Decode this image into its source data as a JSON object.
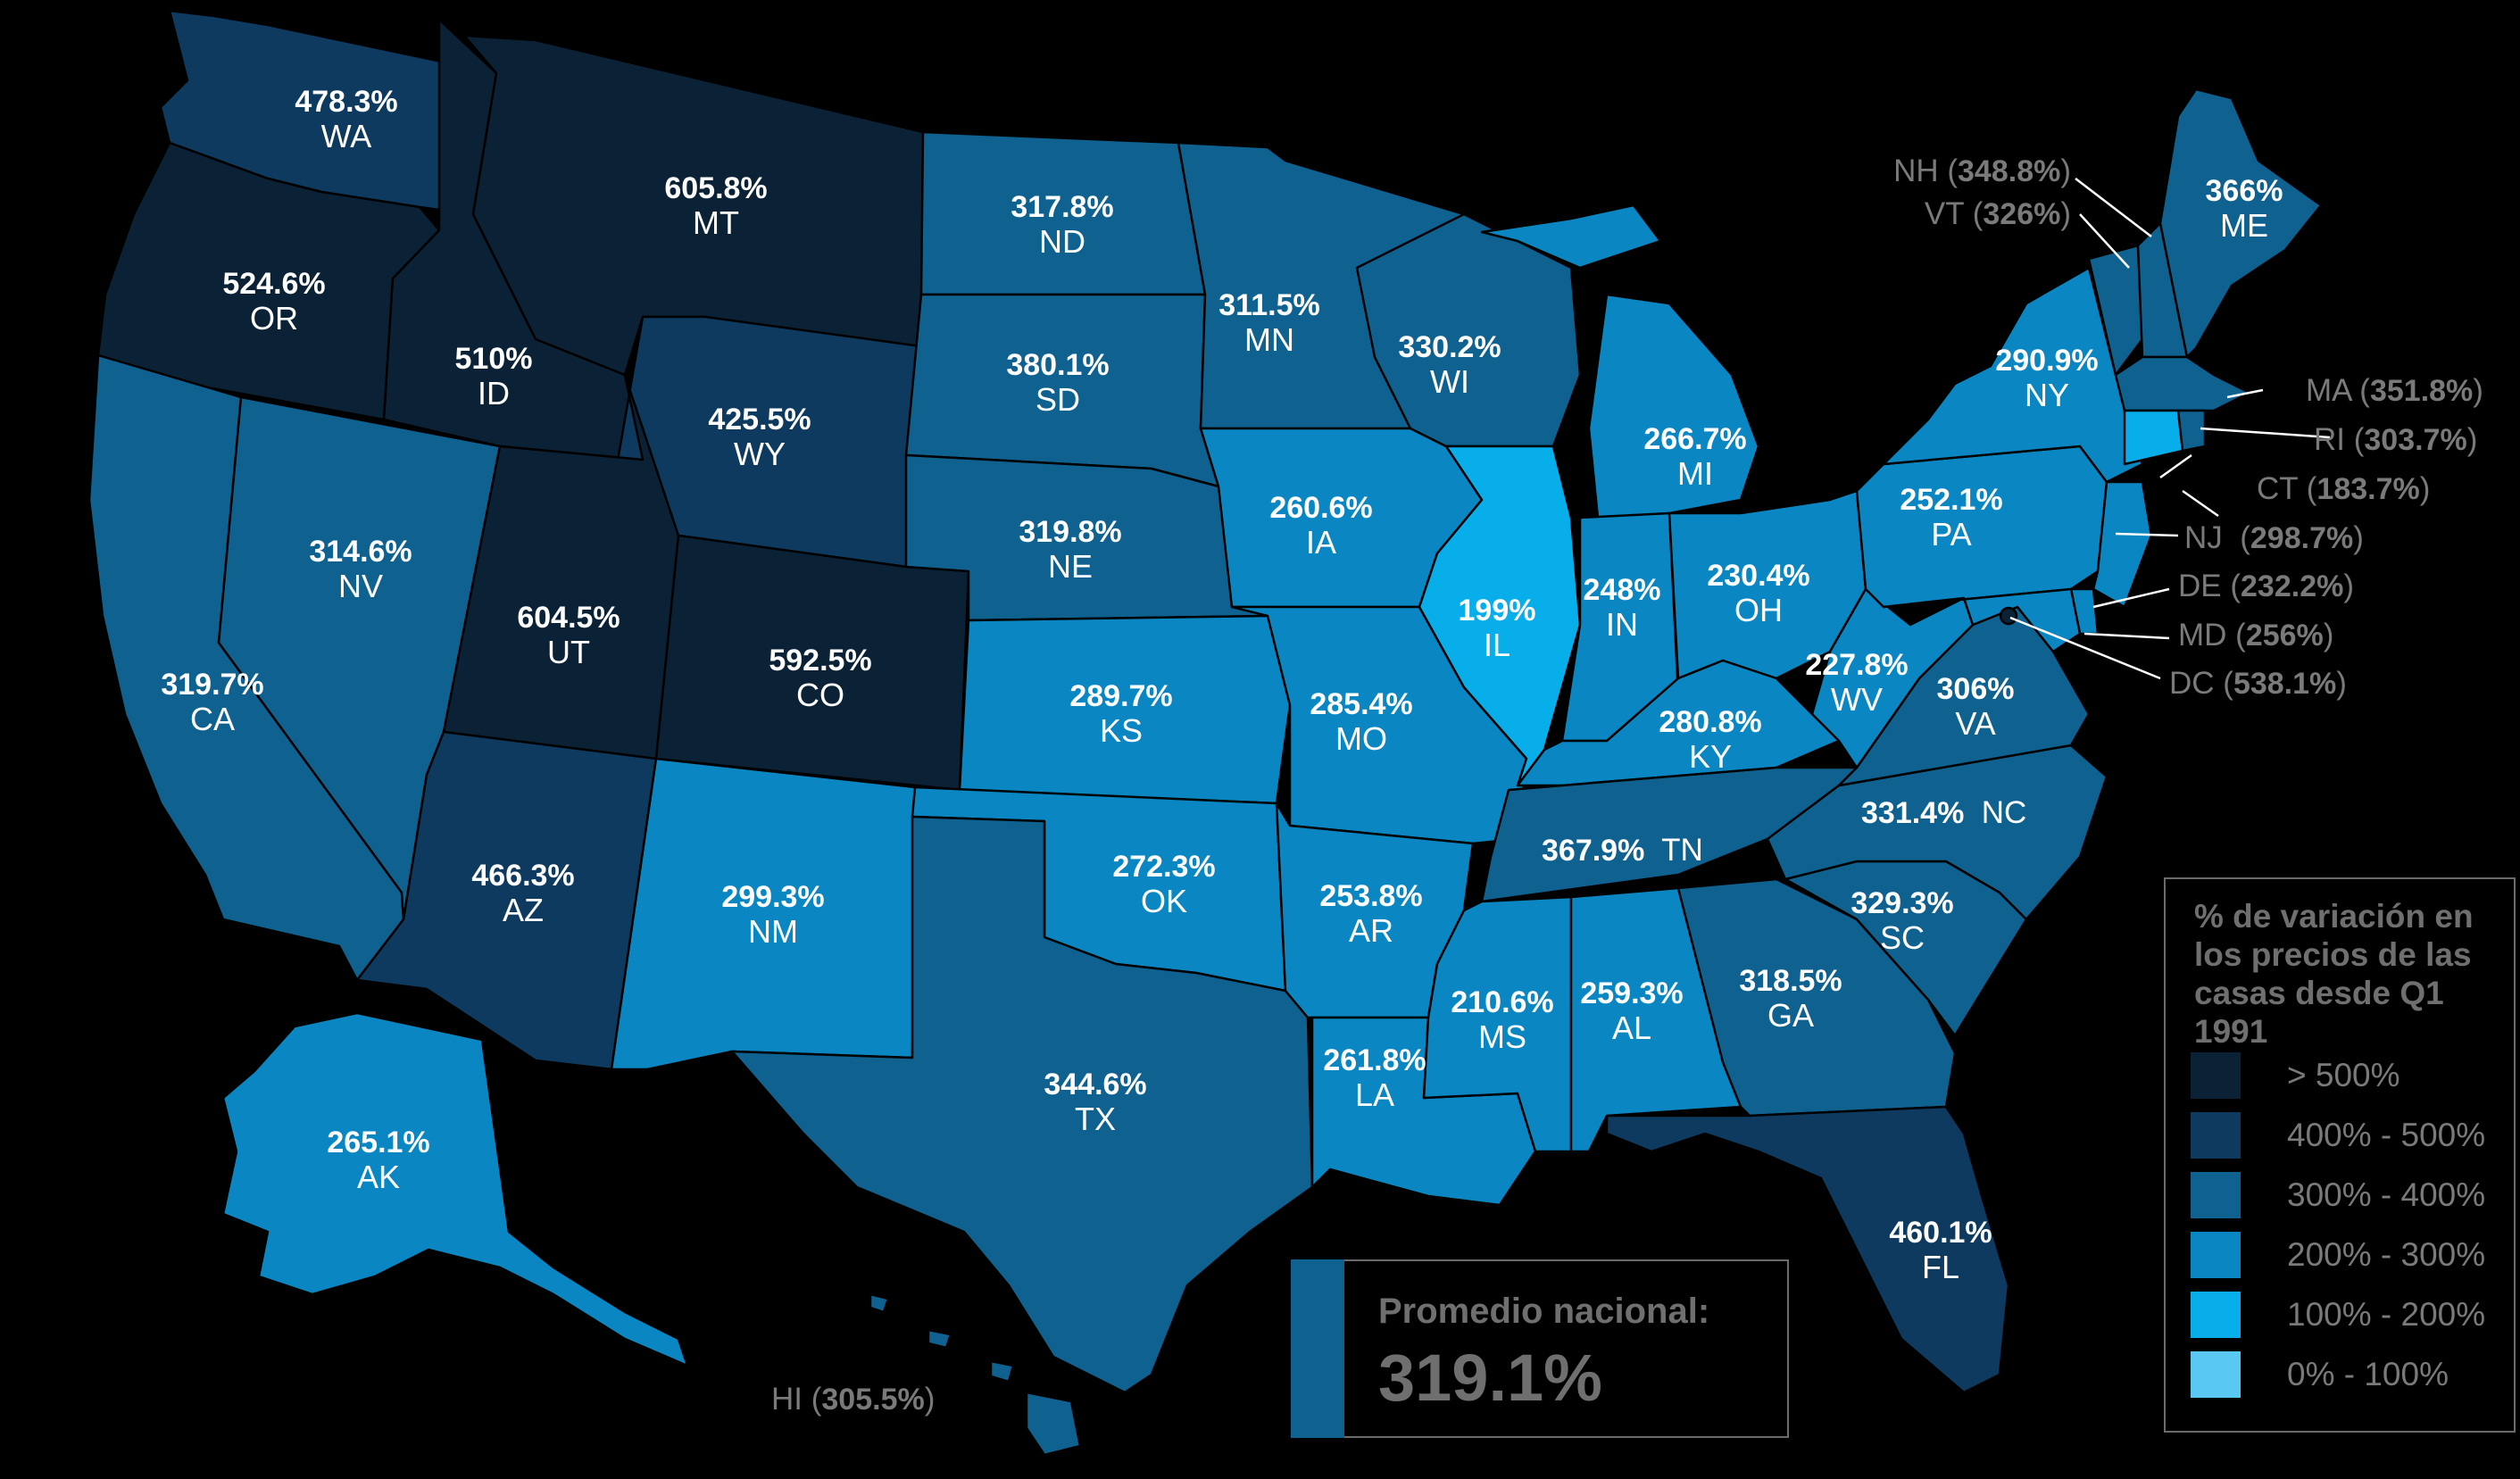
{
  "palette": {
    "b500": "#0b2236",
    "b400": "#0d3a5e",
    "b300": "#0f6190",
    "b200": "#0a87c2",
    "b100": "#08aeea",
    "b0": "#59c9f3"
  },
  "states": [
    {
      "id": "WA",
      "abbr": "WA",
      "pct": "478.3%",
      "bin": "b400"
    },
    {
      "id": "OR",
      "abbr": "OR",
      "pct": "524.6%",
      "bin": "b500"
    },
    {
      "id": "CA",
      "abbr": "CA",
      "pct": "319.7%",
      "bin": "b300"
    },
    {
      "id": "ID",
      "abbr": "ID",
      "pct": "510%",
      "bin": "b500"
    },
    {
      "id": "NV",
      "abbr": "NV",
      "pct": "314.6%",
      "bin": "b300"
    },
    {
      "id": "MT",
      "abbr": "MT",
      "pct": "605.8%",
      "bin": "b500"
    },
    {
      "id": "WY",
      "abbr": "WY",
      "pct": "425.5%",
      "bin": "b400"
    },
    {
      "id": "UT",
      "abbr": "UT",
      "pct": "604.5%",
      "bin": "b500"
    },
    {
      "id": "CO",
      "abbr": "CO",
      "pct": "592.5%",
      "bin": "b500"
    },
    {
      "id": "AZ",
      "abbr": "AZ",
      "pct": "466.3%",
      "bin": "b400"
    },
    {
      "id": "NM",
      "abbr": "NM",
      "pct": "299.3%",
      "bin": "b200"
    },
    {
      "id": "ND",
      "abbr": "ND",
      "pct": "317.8%",
      "bin": "b300"
    },
    {
      "id": "SD",
      "abbr": "SD",
      "pct": "380.1%",
      "bin": "b300"
    },
    {
      "id": "NE",
      "abbr": "NE",
      "pct": "319.8%",
      "bin": "b300"
    },
    {
      "id": "KS",
      "abbr": "KS",
      "pct": "289.7%",
      "bin": "b200"
    },
    {
      "id": "OK",
      "abbr": "OK",
      "pct": "272.3%",
      "bin": "b200"
    },
    {
      "id": "TX",
      "abbr": "TX",
      "pct": "344.6%",
      "bin": "b300"
    },
    {
      "id": "MN",
      "abbr": "MN",
      "pct": "311.5%",
      "bin": "b300"
    },
    {
      "id": "IA",
      "abbr": "IA",
      "pct": "260.6%",
      "bin": "b200"
    },
    {
      "id": "MO",
      "abbr": "MO",
      "pct": "285.4%",
      "bin": "b200"
    },
    {
      "id": "AR",
      "abbr": "AR",
      "pct": "253.8%",
      "bin": "b200"
    },
    {
      "id": "LA",
      "abbr": "LA",
      "pct": "261.8%",
      "bin": "b200"
    },
    {
      "id": "WI",
      "abbr": "WI",
      "pct": "330.2%",
      "bin": "b300"
    },
    {
      "id": "IL",
      "abbr": "IL",
      "pct": "199%",
      "bin": "b100"
    },
    {
      "id": "MI",
      "abbr": "MI",
      "pct": "266.7%",
      "bin": "b200"
    },
    {
      "id": "IN",
      "abbr": "IN",
      "pct": "248%",
      "bin": "b200"
    },
    {
      "id": "OH",
      "abbr": "OH",
      "pct": "230.4%",
      "bin": "b200"
    },
    {
      "id": "KY",
      "abbr": "KY",
      "pct": "280.8%",
      "bin": "b200"
    },
    {
      "id": "TN",
      "abbr": "TN",
      "pct": "367.9%",
      "bin": "b300"
    },
    {
      "id": "MS",
      "abbr": "MS",
      "pct": "210.6%",
      "bin": "b200"
    },
    {
      "id": "AL",
      "abbr": "AL",
      "pct": "259.3%",
      "bin": "b200"
    },
    {
      "id": "GA",
      "abbr": "GA",
      "pct": "318.5%",
      "bin": "b300"
    },
    {
      "id": "FL",
      "abbr": "FL",
      "pct": "460.1%",
      "bin": "b400"
    },
    {
      "id": "SC",
      "abbr": "SC",
      "pct": "329.3%",
      "bin": "b300"
    },
    {
      "id": "NC",
      "abbr": "NC",
      "pct": "331.4%",
      "bin": "b300"
    },
    {
      "id": "VA",
      "abbr": "VA",
      "pct": "306%",
      "bin": "b300"
    },
    {
      "id": "WV",
      "abbr": "WV",
      "pct": "227.8%",
      "bin": "b200"
    },
    {
      "id": "PA",
      "abbr": "PA",
      "pct": "252.1%",
      "bin": "b200"
    },
    {
      "id": "NY",
      "abbr": "NY",
      "pct": "290.9%",
      "bin": "b200"
    },
    {
      "id": "ME",
      "abbr": "ME",
      "pct": "366%",
      "bin": "b300"
    },
    {
      "id": "AK",
      "abbr": "AK",
      "pct": "265.1%",
      "bin": "b200"
    }
  ],
  "callouts": [
    {
      "id": "NH",
      "abbr": "NH",
      "pct": "348.8%",
      "bin": "b300"
    },
    {
      "id": "VT",
      "abbr": "VT",
      "pct": "326%",
      "bin": "b300"
    },
    {
      "id": "MA",
      "abbr": "MA",
      "pct": "351.8%",
      "bin": "b300"
    },
    {
      "id": "RI",
      "abbr": "RI",
      "pct": "303.7%",
      "bin": "b300"
    },
    {
      "id": "CT",
      "abbr": "CT",
      "pct": "183.7%",
      "bin": "b100"
    },
    {
      "id": "NJ",
      "abbr": "NJ",
      "pct": "298.7%",
      "bin": "b200"
    },
    {
      "id": "DE",
      "abbr": "DE",
      "pct": "232.2%",
      "bin": "b200"
    },
    {
      "id": "MD",
      "abbr": "MD",
      "pct": "256%",
      "bin": "b200"
    },
    {
      "id": "DC",
      "abbr": "DC",
      "pct": "538.1%",
      "bin": "b500"
    },
    {
      "id": "HI",
      "abbr": "HI",
      "pct": "305.5%",
      "bin": "b300"
    }
  ],
  "legend": {
    "title": "% de variación en los precios de las casas desde Q1 1991",
    "items": [
      {
        "label": "> 500%",
        "bin": "b500"
      },
      {
        "label": "400% - 500%",
        "bin": "b400"
      },
      {
        "label": "300% - 400%",
        "bin": "b300"
      },
      {
        "label": "200% - 300%",
        "bin": "b200"
      },
      {
        "label": "100% - 200%",
        "bin": "b100"
      },
      {
        "label": "0% - 100%",
        "bin": "b0"
      }
    ]
  },
  "national": {
    "label": "Promedio nacional:",
    "value": "319.1%"
  }
}
